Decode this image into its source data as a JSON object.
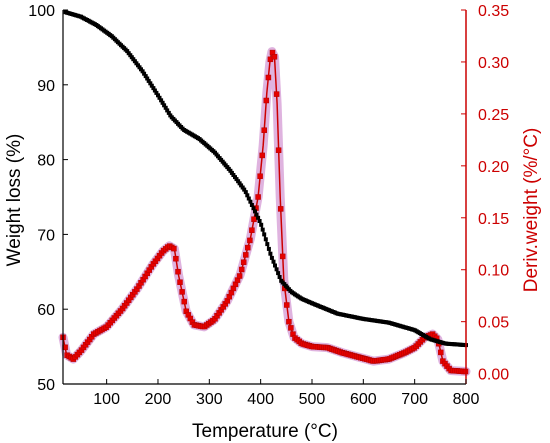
{
  "chart_data": {
    "type": "line",
    "xlabel": "Temperature (°C)",
    "ylabel_left": "Weight loss (%)",
    "ylabel_right": "Deriv.weight (%/°C)",
    "xlim": [
      15,
      800
    ],
    "ylim_left": [
      50,
      100
    ],
    "ylim_right": [
      -0.01,
      0.35
    ],
    "xticks": [
      100,
      200,
      300,
      400,
      500,
      600,
      700,
      800
    ],
    "yticks_left": [
      50,
      60,
      70,
      80,
      90,
      100
    ],
    "yticks_right": [
      "0.00",
      "0.05",
      "0.10",
      "0.15",
      "0.20",
      "0.25",
      "0.30",
      "0.35"
    ],
    "grid": false,
    "colors": {
      "weight": "#000000",
      "derivative": "#cc0000",
      "derivative_marker": "#e60000",
      "halo": "#d9a6d9"
    },
    "series": [
      {
        "axis": "left",
        "color": "#000000",
        "x": [
          20,
          50,
          80,
          110,
          140,
          170,
          200,
          225,
          250,
          280,
          310,
          340,
          370,
          400,
          420,
          440,
          460,
          480,
          500,
          550,
          600,
          650,
          700,
          730,
          760,
          800
        ],
        "y": [
          99.7,
          99.1,
          98.0,
          96.5,
          94.5,
          91.8,
          88.6,
          85.8,
          84.0,
          82.8,
          81.0,
          78.6,
          75.8,
          71.5,
          67.2,
          63.8,
          62.3,
          61.4,
          60.8,
          59.4,
          58.7,
          58.2,
          57.2,
          56.0,
          55.4,
          55.2
        ]
      },
      {
        "axis": "right",
        "color": "#cc0000",
        "x": [
          15,
          22,
          35,
          50,
          75,
          100,
          130,
          160,
          190,
          210,
          222,
          232,
          240,
          255,
          270,
          290,
          310,
          335,
          360,
          380,
          395,
          405,
          412,
          418,
          422,
          427,
          432,
          438,
          445,
          455,
          465,
          480,
          500,
          530,
          560,
          590,
          620,
          650,
          680,
          700,
          720,
          735,
          745,
          755,
          770,
          800
        ],
        "y": [
          0.035,
          0.018,
          0.014,
          0.022,
          0.038,
          0.045,
          0.062,
          0.082,
          0.105,
          0.118,
          0.123,
          0.12,
          0.095,
          0.06,
          0.047,
          0.045,
          0.052,
          0.07,
          0.095,
          0.13,
          0.17,
          0.22,
          0.27,
          0.3,
          0.31,
          0.305,
          0.26,
          0.17,
          0.09,
          0.05,
          0.035,
          0.029,
          0.026,
          0.025,
          0.02,
          0.016,
          0.012,
          0.014,
          0.02,
          0.025,
          0.035,
          0.038,
          0.033,
          0.012,
          0.003,
          0.002
        ]
      }
    ]
  }
}
